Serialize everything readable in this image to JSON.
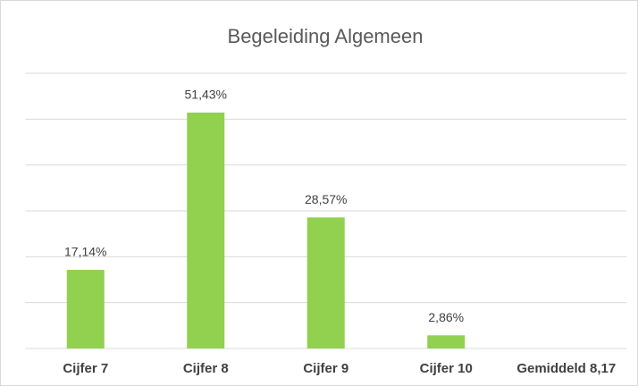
{
  "chart_data": {
    "type": "bar",
    "title": "Begeleiding Algemeen",
    "categories": [
      "Cijfer 7",
      "Cijfer 8",
      "Cijfer 9",
      "Cijfer 10",
      "Gemiddeld 8,17"
    ],
    "values": [
      17.14,
      51.43,
      28.57,
      2.86,
      null
    ],
    "value_labels": [
      "17,14%",
      "51,43%",
      "28,57%",
      "2,86%",
      null
    ],
    "color": "#92d050",
    "ylim": [
      0,
      60
    ],
    "yticks": [
      0,
      10,
      20,
      30,
      40,
      50,
      60
    ],
    "grid": true
  }
}
